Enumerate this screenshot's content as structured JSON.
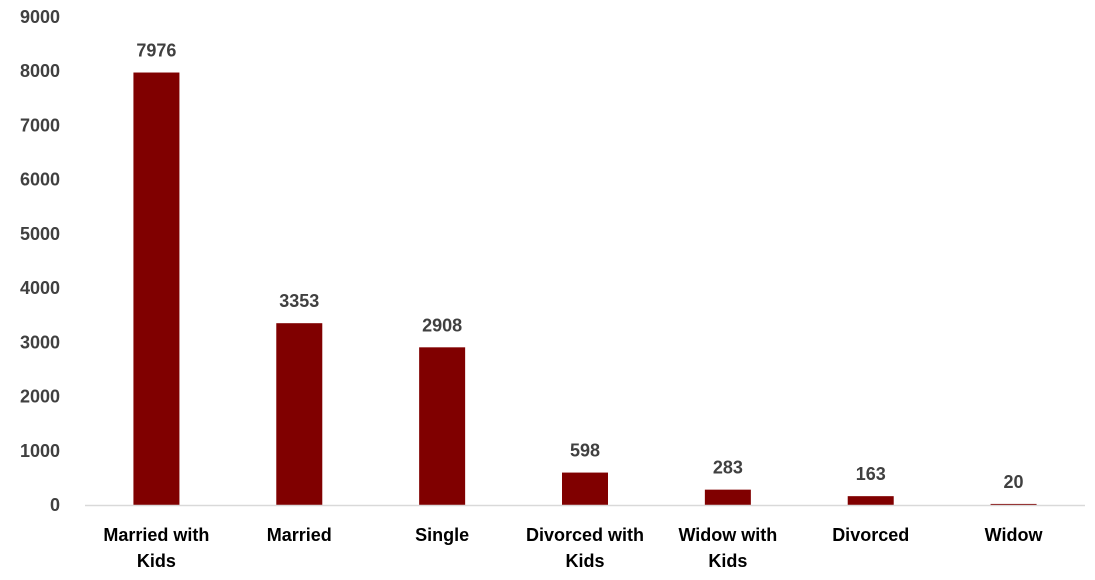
{
  "chart_data": {
    "type": "bar",
    "title": "",
    "xlabel": "",
    "ylabel": "",
    "categories": [
      "Married with Kids",
      "Married",
      "Single",
      "Divorced with Kids",
      "Widow with Kids",
      "Divorced",
      "Widow"
    ],
    "category_lines": [
      [
        "Married with",
        "Kids"
      ],
      [
        "Married"
      ],
      [
        "Single"
      ],
      [
        "Divorced with",
        "Kids"
      ],
      [
        "Widow with",
        "Kids"
      ],
      [
        "Divorced"
      ],
      [
        "Widow"
      ]
    ],
    "values": [
      7976,
      3353,
      2908,
      598,
      283,
      163,
      20
    ],
    "data_labels": [
      "7976",
      "3353",
      "2908",
      "598",
      "283",
      "163",
      "20"
    ],
    "ylim": [
      0,
      9000
    ],
    "yticks": [
      0,
      1000,
      2000,
      3000,
      4000,
      5000,
      6000,
      7000,
      8000,
      9000
    ],
    "ytick_labels": [
      "0",
      "1000",
      "2000",
      "3000",
      "4000",
      "5000",
      "6000",
      "7000",
      "8000",
      "9000"
    ],
    "grid": false,
    "legend": "none",
    "bar_color": "#800000",
    "axis_color": "#d9d9d9",
    "label_color": "#404040"
  }
}
